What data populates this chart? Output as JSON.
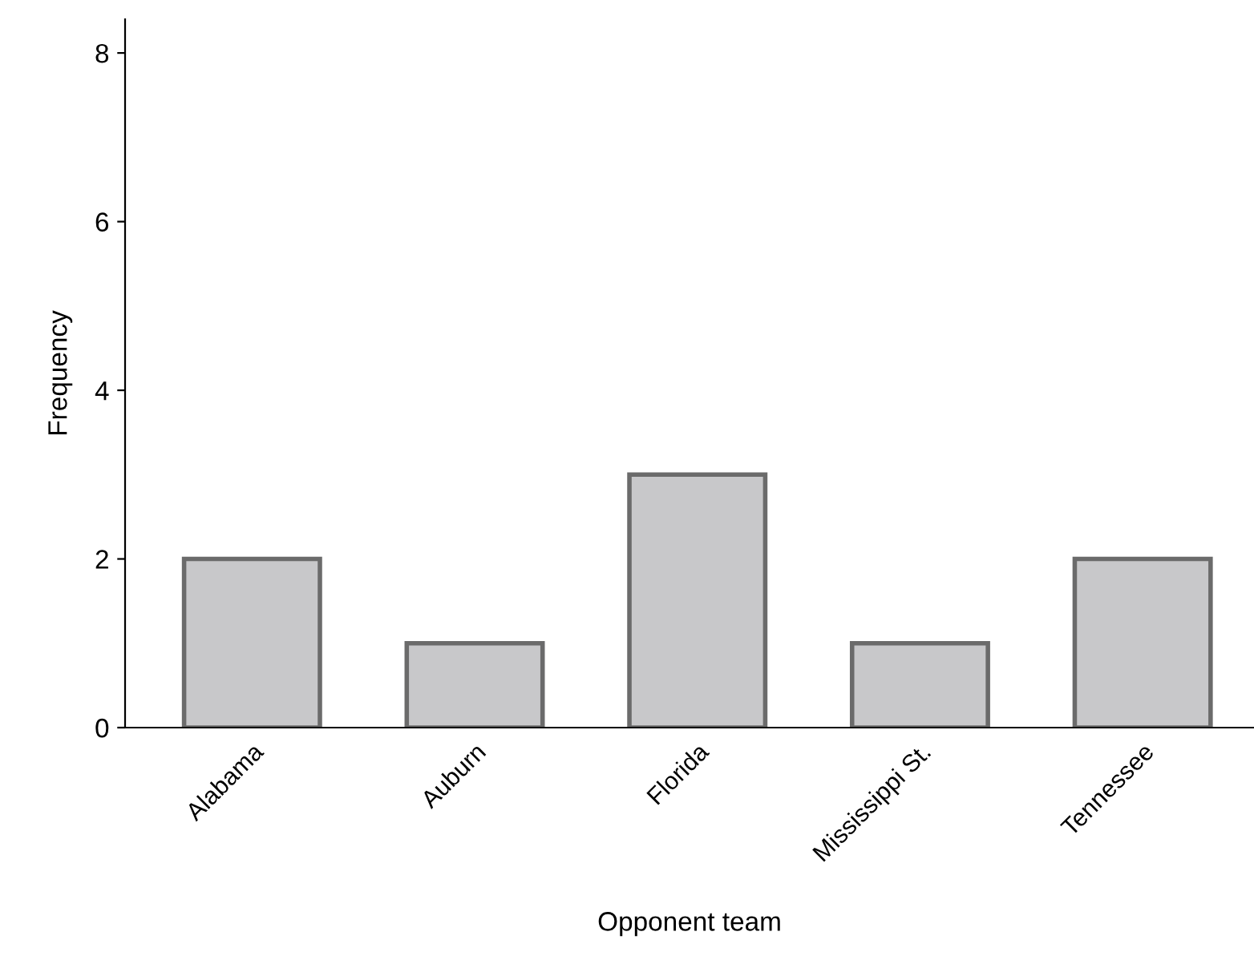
{
  "chart_data": {
    "type": "bar",
    "xlabel": "Opponent team",
    "ylabel": "Frequency",
    "categories": [
      "Alabama",
      "Auburn",
      "Florida",
      "Mississippi St.",
      "Tennessee"
    ],
    "values": [
      2,
      1,
      3,
      1,
      2
    ],
    "color": "#c8c8ca",
    "ylim": [
      0,
      8.4
    ],
    "yticks": [
      0,
      2,
      4,
      6,
      8
    ],
    "grid": false
  }
}
